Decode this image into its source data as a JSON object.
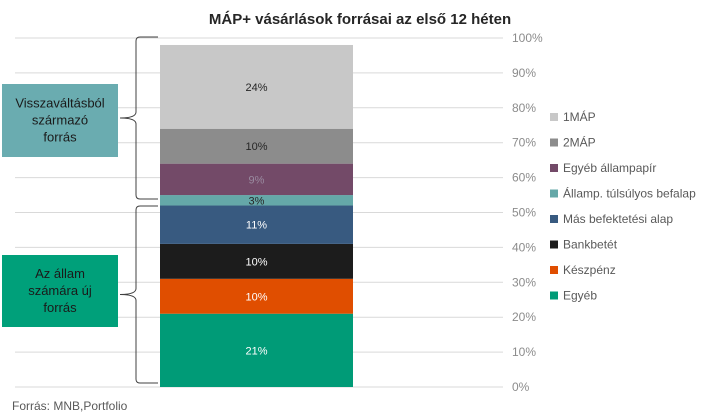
{
  "chart_data": {
    "type": "bar",
    "stacked": true,
    "title": "MÁP+ vásárlások forrásai az első 12 héten",
    "categories": [
      ""
    ],
    "ylim": [
      0,
      100
    ],
    "ytick_labels": [
      "0%",
      "10%",
      "20%",
      "30%",
      "40%",
      "50%",
      "60%",
      "70%",
      "80%",
      "90%",
      "100%"
    ],
    "grid": true,
    "legend_position": "right",
    "series": [
      {
        "name": "Egyéb",
        "values": [
          21
        ],
        "label": "21%",
        "color": "#009b77"
      },
      {
        "name": "Készpénz",
        "values": [
          10
        ],
        "label": "10%",
        "color": "#e04e00"
      },
      {
        "name": "Bankbetét",
        "values": [
          10
        ],
        "label": "10%",
        "color": "#1c1c1c"
      },
      {
        "name": "Más befektetési alap",
        "values": [
          11
        ],
        "label": "11%",
        "color": "#385a80"
      },
      {
        "name": "Államp. túlsúlyos befalap",
        "values": [
          3
        ],
        "label": "3%",
        "color": "#65a8a8"
      },
      {
        "name": "Egyéb állampapír",
        "values": [
          9
        ],
        "label": "9%",
        "color": "#734a68"
      },
      {
        "name": "2MÁP",
        "values": [
          10
        ],
        "label": "10%",
        "color": "#8c8c8c"
      },
      {
        "name": "1MÁP",
        "values": [
          24
        ],
        "label": "24%",
        "color": "#c8c8c8"
      }
    ],
    "legend_order": [
      "1MÁP",
      "2MÁP",
      "Egyéb állampapír",
      "Államp. túlsúlyos befalap",
      "Más befektetési alap",
      "Bankbetét",
      "Készpénz",
      "Egyéb"
    ],
    "annotations": [
      {
        "text_lines": [
          "Visszaváltásból",
          "származó",
          "forrás"
        ],
        "color": "#6aacb0"
      },
      {
        "text_lines": [
          "Az állam",
          "számára új",
          "forrás"
        ],
        "color": "#00a07a"
      }
    ]
  },
  "source": "Forrás: MNB,Portfolio"
}
